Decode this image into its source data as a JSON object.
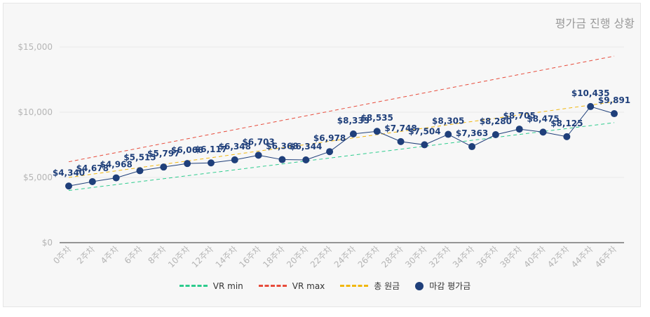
{
  "chart_data": {
    "type": "line",
    "title": "평가금 진행 상황",
    "categories": [
      "0주차",
      "2주차",
      "4주차",
      "6주차",
      "8주차",
      "10주차",
      "12주차",
      "14주차",
      "16주차",
      "18주차",
      "20주차",
      "22주차",
      "24주차",
      "26주차",
      "28주차",
      "30주차",
      "32주차",
      "34주차",
      "36주차",
      "38주차",
      "40주차",
      "42주차",
      "44주차",
      "46주차"
    ],
    "ylim": [
      0,
      15000
    ],
    "yticks": [
      "$0",
      "$5,000",
      "$10,000",
      "$15,000"
    ],
    "series": [
      {
        "name": "VR min",
        "style": "dashed",
        "color": "#2ecc8e",
        "start": 4000,
        "end": 9200
      },
      {
        "name": "VR max",
        "style": "dashed",
        "color": "#e74c3c",
        "start": 6200,
        "end": 14300
      },
      {
        "name": "총 원금",
        "style": "dashed",
        "color": "#f1b70e",
        "start": 5000,
        "end": 10800
      },
      {
        "name": "마감 평가금",
        "style": "line-marker",
        "color": "#1f3f7a",
        "values": [
          4340,
          4678,
          4968,
          5515,
          5797,
          6066,
          6117,
          6348,
          6703,
          6368,
          6344,
          6978,
          8333,
          8535,
          7748,
          7504,
          8305,
          7363,
          8280,
          8705,
          8475,
          8125,
          10435,
          9891
        ],
        "labels": [
          "$4,340",
          "$4,678",
          "$4,968",
          "$5,515",
          "$5,797",
          "$6,066",
          "$6,117",
          "$6,348",
          "$6,703",
          "$6,368",
          "$6,344",
          "$6,978",
          "$8,333",
          "$8,535",
          "$7,748",
          "$7,504",
          "$8,305",
          "$7,363",
          "$8,280",
          "$8,705",
          "$8,475",
          "$8,125",
          "$10,435",
          "$9,891"
        ]
      }
    ],
    "legend_position": "bottom",
    "grid": true
  },
  "legend": [
    {
      "label": "VR min",
      "color": "#2ecc8e"
    },
    {
      "label": "VR max",
      "color": "#e74c3c"
    },
    {
      "label": "총 원금",
      "color": "#f1b70e"
    },
    {
      "label": "마감 평가금",
      "color": "#1f3f7a"
    }
  ]
}
